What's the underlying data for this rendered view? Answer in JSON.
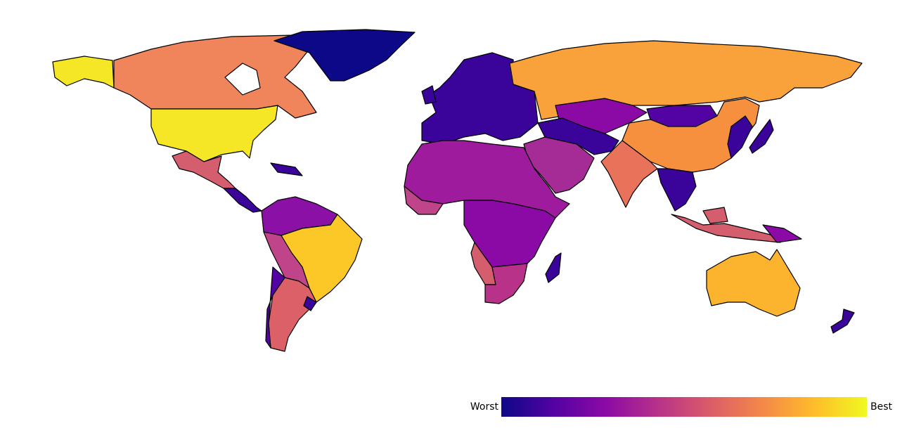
{
  "legend": {
    "low_label": "Worst",
    "high_label": "Best",
    "colors": [
      "#0d0887",
      "#5302a3",
      "#8b0aa5",
      "#b83289",
      "#db5c68",
      "#f48849",
      "#febd2a",
      "#f0f921"
    ]
  }
}
